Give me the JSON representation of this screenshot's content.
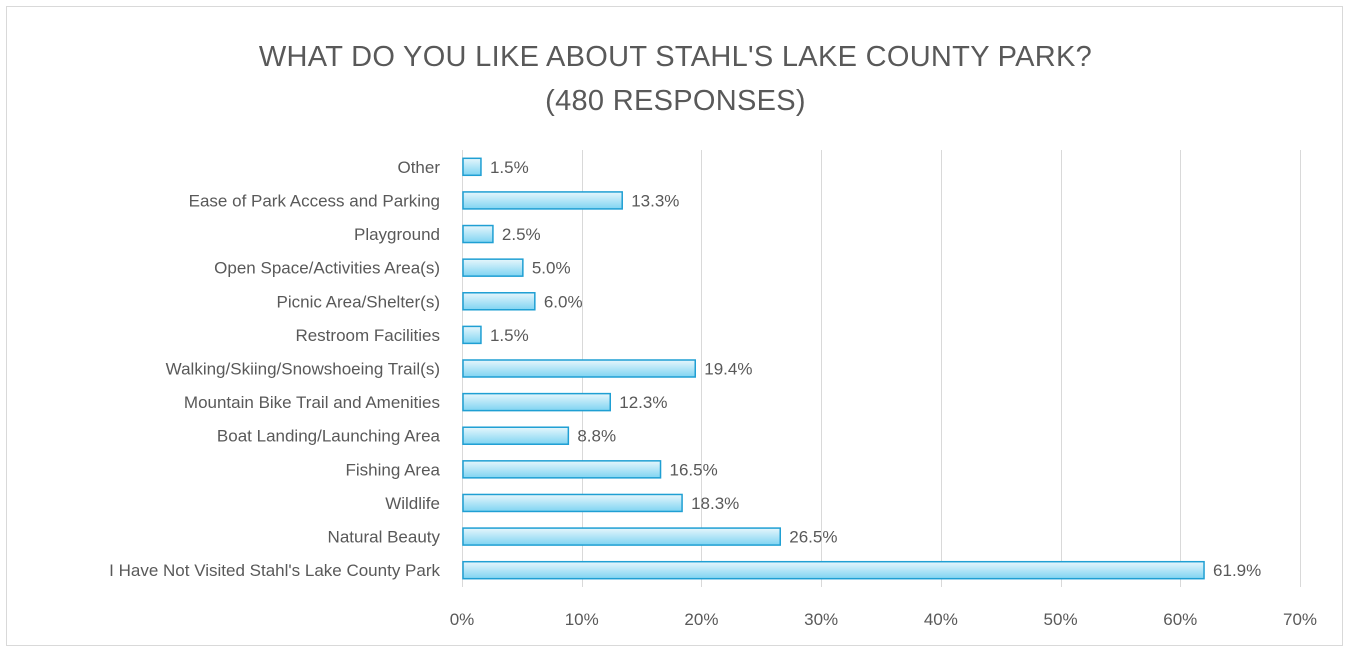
{
  "chart_data": {
    "type": "bar",
    "orientation": "horizontal",
    "title_line1": "WHAT DO YOU LIKE ABOUT STAHL'S LAKE COUNTY PARK?",
    "title_line2": "(480 RESPONSES)",
    "categories": [
      "Other",
      "Ease of Park Access and Parking",
      "Playground",
      "Open Space/Activities Area(s)",
      "Picnic Area/Shelter(s)",
      "Restroom Facilities",
      "Walking/Skiing/Snowshoeing Trail(s)",
      "Mountain Bike Trail and Amenities",
      "Boat Landing/Launching Area",
      "Fishing Area",
      "Wildlife",
      "Natural Beauty",
      "I Have Not Visited Stahl's Lake County Park"
    ],
    "values": [
      1.5,
      13.3,
      2.5,
      5.0,
      6.0,
      1.5,
      19.4,
      12.3,
      8.8,
      16.5,
      18.3,
      26.5,
      61.9
    ],
    "data_labels": [
      "1.5%",
      "13.3%",
      "2.5%",
      "5.0%",
      "6.0%",
      "1.5%",
      "19.4%",
      "12.3%",
      "8.8%",
      "16.5%",
      "18.3%",
      "26.5%",
      "61.9%"
    ],
    "xlim": [
      0,
      70
    ],
    "xticks": [
      0,
      10,
      20,
      30,
      40,
      50,
      60,
      70
    ],
    "xtick_labels": [
      "0%",
      "10%",
      "20%",
      "30%",
      "40%",
      "50%",
      "60%",
      "70%"
    ],
    "grid": "vertical",
    "legend": "none",
    "colors": {
      "bar_fill_top": "#e6f6fc",
      "bar_fill_bottom": "#7fd4f2",
      "bar_border": "#1f9fd3",
      "gridline": "#d9d9d9",
      "text": "#595959"
    }
  }
}
